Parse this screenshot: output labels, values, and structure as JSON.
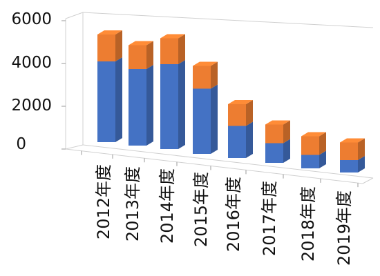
{
  "chart_data": {
    "type": "bar",
    "stacked": true,
    "three_d": true,
    "categories": [
      "2012年度",
      "2013年度",
      "2014年度",
      "2015年度",
      "2016年度",
      "2017年度",
      "2018年度",
      "2019年度"
    ],
    "series": [
      {
        "values": [
          3900,
          3700,
          4100,
          3150,
          1550,
          950,
          650,
          600
        ],
        "color": "#4472C4"
      },
      {
        "values": [
          1300,
          1150,
          1250,
          1100,
          1050,
          900,
          900,
          850
        ],
        "color": "#ED7D31"
      }
    ],
    "yticks": [
      "0",
      "2000",
      "4000",
      "6000"
    ],
    "ylim": [
      0,
      6000
    ],
    "grid": false,
    "legend": "none",
    "title": "",
    "xlabel": "",
    "ylabel": ""
  }
}
